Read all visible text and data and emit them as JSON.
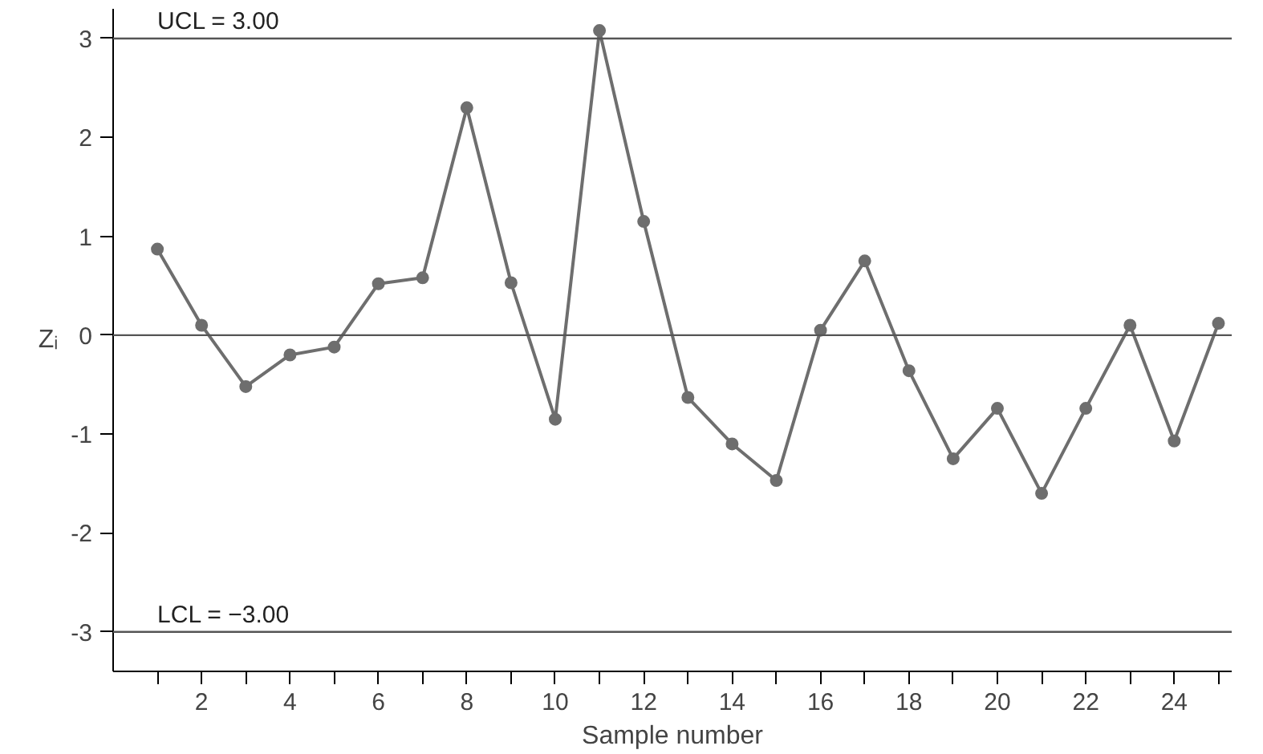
{
  "chart_data": {
    "type": "line",
    "xlabel": "Sample number",
    "ylabel": "Zᵢ",
    "x": [
      1,
      2,
      3,
      4,
      5,
      6,
      7,
      8,
      9,
      10,
      11,
      12,
      13,
      14,
      15,
      16,
      17,
      18,
      19,
      20,
      21,
      22,
      23,
      24,
      25
    ],
    "series": [
      {
        "color": "#6e6e6e",
        "values": [
          0.87,
          0.1,
          -0.52,
          -0.2,
          -0.12,
          0.52,
          0.58,
          2.3,
          0.53,
          -0.85,
          3.08,
          1.15,
          -0.63,
          -1.1,
          -1.47,
          0.05,
          0.75,
          -0.36,
          -1.25,
          -0.74,
          -1.6,
          -0.74,
          0.1,
          -1.07,
          0.12
        ]
      }
    ],
    "xlim": [
      0,
      25.3
    ],
    "ylim": [
      -3.4,
      3.3
    ],
    "xticks": [
      {
        "value": 1,
        "label": null
      },
      2,
      {
        "value": 3,
        "label": null
      },
      4,
      {
        "value": 5,
        "label": null
      },
      6,
      {
        "value": 7,
        "label": null
      },
      8,
      {
        "value": 9,
        "label": null
      },
      10,
      {
        "value": 11,
        "label": null
      },
      12,
      {
        "value": 13,
        "label": null
      },
      14,
      {
        "value": 15,
        "label": null
      },
      16,
      {
        "value": 17,
        "label": null
      },
      18,
      {
        "value": 19,
        "label": null
      },
      20,
      {
        "value": 21,
        "label": null
      },
      22,
      {
        "value": 23,
        "label": null
      },
      24,
      {
        "value": 25,
        "label": null
      }
    ],
    "yticks": [
      -3,
      -2,
      -1,
      0,
      1,
      2,
      3
    ],
    "ref_lines": [
      {
        "axis": "y",
        "value": 3,
        "label": "UCL = 3.00",
        "color": "#555555"
      },
      {
        "axis": "y",
        "value": 0,
        "label": null,
        "color": "#555555"
      },
      {
        "axis": "y",
        "value": -3,
        "label": "LCL = −3.00",
        "color": "#555555"
      }
    ],
    "grid": false,
    "marker": "circle",
    "line_style": "solid"
  }
}
